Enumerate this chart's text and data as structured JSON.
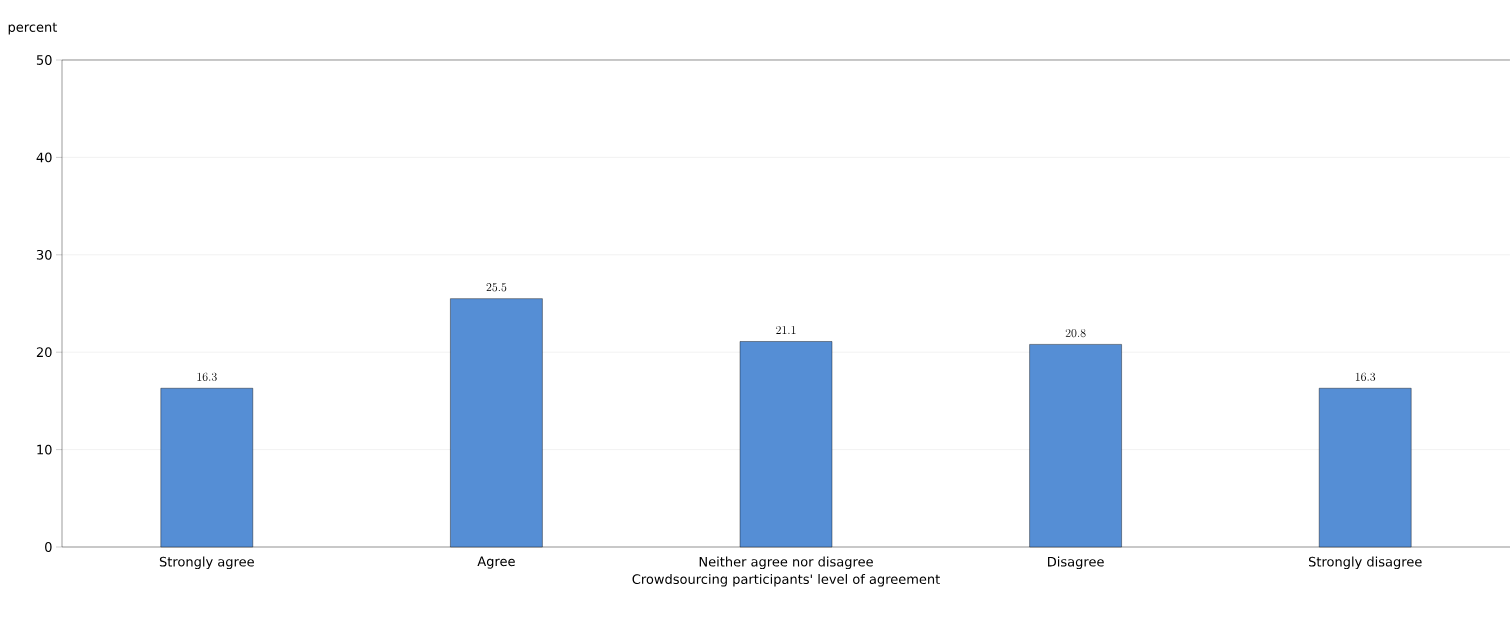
{
  "chart_data": {
    "type": "bar",
    "xlabel": "Crowdsourcing participants' level of agreement",
    "ylabel": "percent",
    "categories": [
      "Strongly agree",
      "Agree",
      "Neither agree nor disagree",
      "Disagree",
      "Strongly disagree"
    ],
    "values": [
      16.3,
      25.5,
      21.1,
      20.8,
      16.3
    ],
    "color": "#558ed5",
    "ylim": [
      0,
      50
    ],
    "yticks": [
      0,
      10,
      20,
      30,
      40,
      50
    ],
    "grid": "y",
    "data_labels": true
  }
}
